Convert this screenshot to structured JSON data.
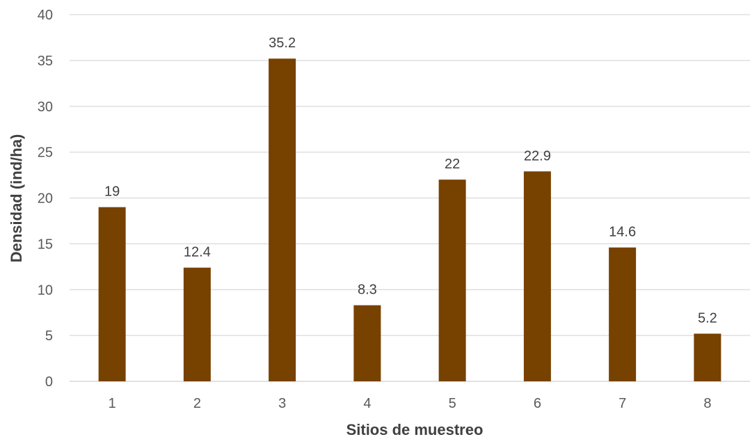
{
  "chart_data": {
    "type": "bar",
    "categories": [
      "1",
      "2",
      "3",
      "4",
      "5",
      "6",
      "7",
      "8"
    ],
    "values": [
      19,
      12.4,
      35.2,
      8.3,
      22,
      22.9,
      14.6,
      5.2
    ],
    "data_labels": [
      "19",
      "12.4",
      "35.2",
      "8.3",
      "22",
      "22.9",
      "14.6",
      "5.2"
    ],
    "title": "",
    "xlabel": "Sitios de muestreo",
    "ylabel": "Densidad (ind/ha)",
    "ylim": [
      0,
      40
    ],
    "yticks": [
      0,
      5,
      10,
      15,
      20,
      25,
      30,
      35,
      40
    ],
    "grid": true,
    "legend": "none",
    "bar_color": "#774100"
  }
}
